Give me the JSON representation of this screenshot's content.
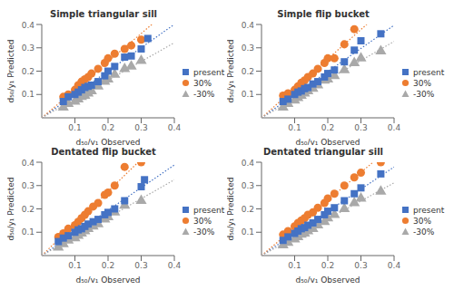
{
  "chart_data": [
    {
      "type": "scatter",
      "title": "Simple triangular sill",
      "xlabel": "d₅₀/y₁ Observed",
      "ylabel": "d₅₀/y₁ Predicted",
      "xlim": [
        0,
        0.4
      ],
      "ylim": [
        0,
        0.4
      ],
      "xticks": [
        0.1,
        0.2,
        0.3,
        0.4
      ],
      "yticks": [
        0.1,
        0.2,
        0.3,
        0.4
      ],
      "grid": false,
      "legend": "right",
      "series": [
        {
          "name": "present",
          "color": "#4472C4",
          "marker": "square",
          "line_style": "dotted",
          "trend_slope": 1.0009,
          "x": [
            0.065,
            0.08,
            0.1,
            0.11,
            0.12,
            0.13,
            0.14,
            0.15,
            0.17,
            0.19,
            0.2,
            0.22,
            0.25,
            0.27,
            0.3,
            0.32
          ],
          "values": [
            0.07,
            0.09,
            0.1,
            0.11,
            0.12,
            0.13,
            0.135,
            0.14,
            0.155,
            0.18,
            0.2,
            0.22,
            0.26,
            0.265,
            0.295,
            0.34
          ]
        },
        {
          "name": "30%",
          "color": "#ED7D31",
          "marker": "circle",
          "line_style": "dotted",
          "trend_slope": 1.2045,
          "x": [
            0.065,
            0.08,
            0.1,
            0.11,
            0.12,
            0.13,
            0.14,
            0.15,
            0.17,
            0.19,
            0.2,
            0.22,
            0.25,
            0.27,
            0.3
          ],
          "values": [
            0.09,
            0.1,
            0.12,
            0.14,
            0.155,
            0.165,
            0.175,
            0.19,
            0.21,
            0.235,
            0.255,
            0.275,
            0.295,
            0.31,
            0.335
          ]
        },
        {
          "name": "-30%",
          "color": "#A9A9A9",
          "marker": "triangle",
          "line_style": "dotted",
          "trend_slope": 0.8045,
          "x": [
            0.065,
            0.08,
            0.1,
            0.11,
            0.12,
            0.13,
            0.14,
            0.15,
            0.17,
            0.19,
            0.2,
            0.22,
            0.25,
            0.27,
            0.3
          ],
          "values": [
            0.045,
            0.06,
            0.07,
            0.08,
            0.09,
            0.095,
            0.105,
            0.115,
            0.135,
            0.155,
            0.165,
            0.185,
            0.21,
            0.22,
            0.245
          ]
        }
      ]
    },
    {
      "type": "scatter",
      "title": "Simple flip bucket",
      "xlabel": "d₅₀/y₁ Observed",
      "ylabel": "d₅₀/y₁ Predicted",
      "xlim": [
        0,
        0.4
      ],
      "ylim": [
        0,
        0.4
      ],
      "xticks": [
        0.1,
        0.2,
        0.3,
        0.4
      ],
      "yticks": [
        0.1,
        0.2,
        0.3,
        0.4
      ],
      "grid": false,
      "legend": "right",
      "series": [
        {
          "name": "present",
          "color": "#4472C4",
          "marker": "square",
          "line_style": "dotted",
          "trend_slope": 0.9915,
          "x": [
            0.065,
            0.08,
            0.1,
            0.11,
            0.12,
            0.13,
            0.14,
            0.155,
            0.17,
            0.19,
            0.2,
            0.22,
            0.25,
            0.28,
            0.3,
            0.36
          ],
          "values": [
            0.07,
            0.08,
            0.1,
            0.11,
            0.115,
            0.125,
            0.13,
            0.145,
            0.155,
            0.175,
            0.19,
            0.205,
            0.24,
            0.29,
            0.33,
            0.36
          ]
        },
        {
          "name": "30%",
          "color": "#ED7D31",
          "marker": "circle",
          "line_style": "dotted",
          "trend_slope": 1.2608,
          "x": [
            0.065,
            0.08,
            0.1,
            0.11,
            0.12,
            0.13,
            0.14,
            0.155,
            0.17,
            0.19,
            0.2,
            0.22,
            0.25,
            0.28
          ],
          "values": [
            0.095,
            0.105,
            0.12,
            0.135,
            0.15,
            0.16,
            0.175,
            0.19,
            0.21,
            0.235,
            0.255,
            0.255,
            0.315,
            0.38
          ]
        },
        {
          "name": "-30%",
          "color": "#A9A9A9",
          "marker": "triangle",
          "line_style": "dotted",
          "trend_slope": 0.8174,
          "x": [
            0.065,
            0.08,
            0.1,
            0.11,
            0.12,
            0.13,
            0.14,
            0.155,
            0.17,
            0.19,
            0.2,
            0.22,
            0.25,
            0.28,
            0.3,
            0.36
          ],
          "values": [
            0.045,
            0.06,
            0.075,
            0.085,
            0.095,
            0.105,
            0.115,
            0.125,
            0.14,
            0.16,
            0.165,
            0.18,
            0.205,
            0.235,
            0.255,
            0.285
          ]
        }
      ]
    },
    {
      "type": "scatter",
      "title": "Dentated flip bucket",
      "xlabel": "d₅₀/y₁ Observed",
      "ylabel": "d₅₀/y₁ Predicted",
      "xlim": [
        0,
        0.4
      ],
      "ylim": [
        0,
        0.4
      ],
      "xticks": [
        0.1,
        0.2,
        0.3,
        0.4
      ],
      "yticks": [
        0.1,
        0.2,
        0.3,
        0.4
      ],
      "grid": false,
      "legend": "right",
      "series": [
        {
          "name": "present",
          "color": "#4472C4",
          "marker": "square",
          "line_style": "dotted",
          "trend_slope": 0.97,
          "x": [
            0.05,
            0.065,
            0.08,
            0.1,
            0.11,
            0.12,
            0.13,
            0.14,
            0.155,
            0.17,
            0.19,
            0.2,
            0.22,
            0.25,
            0.3,
            0.31
          ],
          "values": [
            0.06,
            0.075,
            0.085,
            0.1,
            0.11,
            0.115,
            0.125,
            0.135,
            0.145,
            0.155,
            0.175,
            0.185,
            0.2,
            0.235,
            0.295,
            0.325
          ]
        },
        {
          "name": "30%",
          "color": "#ED7D31",
          "marker": "circle",
          "line_style": "dotted",
          "trend_slope": 1.375,
          "x": [
            0.05,
            0.065,
            0.08,
            0.1,
            0.11,
            0.12,
            0.13,
            0.14,
            0.155,
            0.17,
            0.19,
            0.2,
            0.22,
            0.25,
            0.3
          ],
          "values": [
            0.08,
            0.095,
            0.115,
            0.13,
            0.145,
            0.16,
            0.175,
            0.19,
            0.21,
            0.225,
            0.26,
            0.27,
            0.3,
            0.38,
            0.4
          ]
        },
        {
          "name": "-30%",
          "color": "#A9A9A9",
          "marker": "triangle",
          "line_style": "dotted",
          "trend_slope": 0.8122,
          "x": [
            0.05,
            0.065,
            0.08,
            0.1,
            0.11,
            0.12,
            0.13,
            0.14,
            0.155,
            0.17,
            0.19,
            0.2,
            0.22,
            0.25,
            0.3
          ],
          "values": [
            0.035,
            0.05,
            0.065,
            0.075,
            0.085,
            0.095,
            0.105,
            0.115,
            0.125,
            0.135,
            0.155,
            0.165,
            0.185,
            0.215,
            0.235
          ]
        }
      ]
    },
    {
      "type": "scatter",
      "title": "Dentated triangular sill",
      "xlabel": "d₅₀/y₁ Observed",
      "ylabel": "d₅₀/y₁ Predicted",
      "xlim": [
        0,
        0.4
      ],
      "ylim": [
        0,
        0.4
      ],
      "xticks": [
        0.1,
        0.2,
        0.3,
        0.4
      ],
      "yticks": [
        0.1,
        0.2,
        0.3,
        0.4
      ],
      "grid": false,
      "legend": "right",
      "series": [
        {
          "name": "present",
          "color": "#4472C4",
          "marker": "square",
          "line_style": "dotted",
          "trend_slope": 0.9486,
          "x": [
            0.065,
            0.08,
            0.1,
            0.11,
            0.12,
            0.13,
            0.14,
            0.155,
            0.17,
            0.19,
            0.2,
            0.22,
            0.25,
            0.28,
            0.3,
            0.36
          ],
          "values": [
            0.065,
            0.08,
            0.095,
            0.105,
            0.115,
            0.12,
            0.13,
            0.14,
            0.155,
            0.175,
            0.19,
            0.205,
            0.235,
            0.265,
            0.29,
            0.35
          ]
        },
        {
          "name": "30%",
          "color": "#ED7D31",
          "marker": "circle",
          "line_style": "dotted",
          "trend_slope": 1.1879,
          "x": [
            0.065,
            0.08,
            0.1,
            0.11,
            0.12,
            0.13,
            0.14,
            0.155,
            0.17,
            0.19,
            0.2,
            0.22,
            0.25,
            0.28,
            0.3,
            0.36
          ],
          "values": [
            0.09,
            0.105,
            0.125,
            0.14,
            0.15,
            0.16,
            0.175,
            0.185,
            0.205,
            0.225,
            0.245,
            0.265,
            0.3,
            0.335,
            0.355,
            0.4
          ]
        },
        {
          "name": "-30%",
          "color": "#A9A9A9",
          "marker": "triangle",
          "line_style": "dotted",
          "trend_slope": 0.7794,
          "x": [
            0.065,
            0.08,
            0.1,
            0.11,
            0.12,
            0.13,
            0.14,
            0.155,
            0.17,
            0.19,
            0.2,
            0.22,
            0.25,
            0.28,
            0.3,
            0.36
          ],
          "values": [
            0.045,
            0.055,
            0.07,
            0.08,
            0.09,
            0.095,
            0.105,
            0.115,
            0.13,
            0.145,
            0.16,
            0.175,
            0.2,
            0.225,
            0.245,
            0.275
          ]
        }
      ]
    }
  ]
}
